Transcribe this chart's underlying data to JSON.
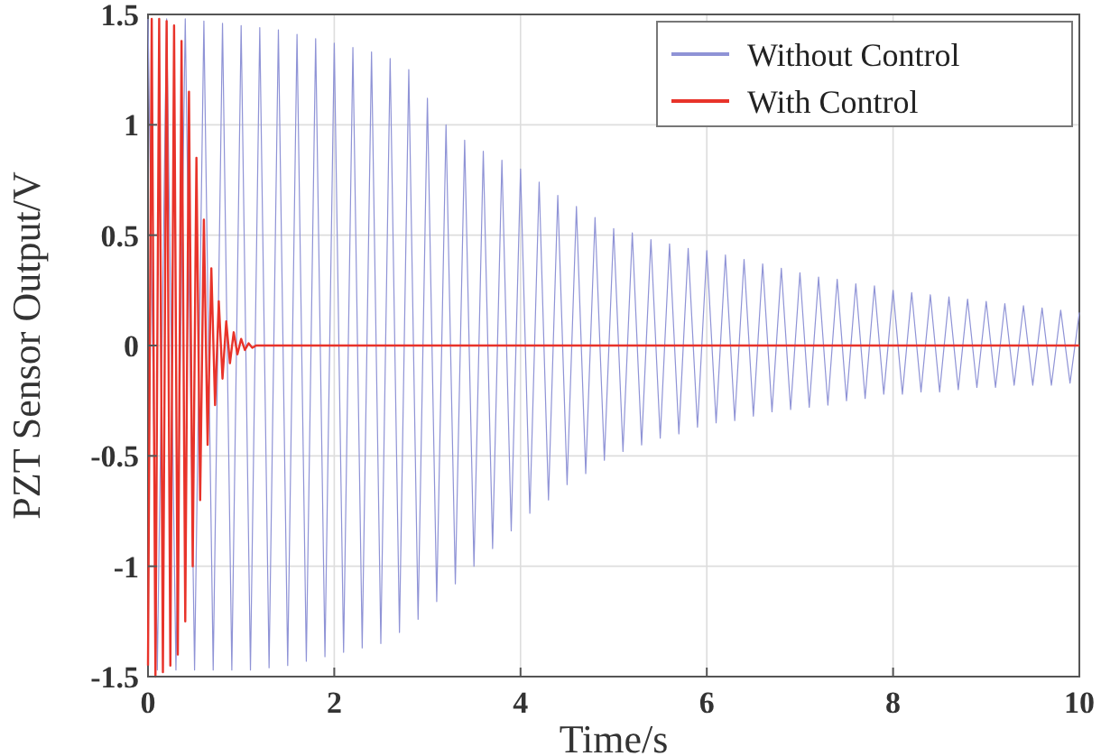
{
  "chart_data": {
    "type": "line",
    "xlabel": "Time/s",
    "ylabel": "PZT Sensor Output/V",
    "x": [
      0,
      0.1,
      0.2,
      0.3,
      0.4,
      0.5,
      0.6,
      0.7,
      0.8,
      0.9,
      1,
      1.1,
      1.2,
      1.3,
      1.4,
      1.5,
      1.6,
      1.7,
      1.8,
      1.9,
      2,
      2.1,
      2.2,
      2.3,
      2.4,
      2.5,
      2.6,
      2.7,
      2.8,
      2.9,
      3,
      3.1,
      3.2,
      3.3,
      3.4,
      3.5,
      3.6,
      3.7,
      3.8,
      3.9,
      4,
      4.1,
      4.2,
      4.3,
      4.4,
      4.5,
      4.6,
      4.7,
      4.8,
      4.9,
      5,
      5.1,
      5.2,
      5.3,
      5.4,
      5.5,
      5.6,
      5.7,
      5.8,
      5.9,
      6,
      6.1,
      6.2,
      6.3,
      6.4,
      6.5,
      6.6,
      6.7,
      6.8,
      6.9,
      7,
      7.1,
      7.2,
      7.3,
      7.4,
      7.5,
      7.6,
      7.7,
      7.8,
      7.9,
      8,
      8.1,
      8.2,
      8.3,
      8.4,
      8.5,
      8.6,
      8.7,
      8.8,
      8.9,
      9,
      9.1,
      9.2,
      9.3,
      9.4,
      9.5,
      9.6,
      9.7,
      9.8,
      9.9,
      10
    ],
    "series": [
      {
        "name": "Without Control",
        "color": "#8f93d6",
        "values": [
          1.48,
          -1.47,
          1.48,
          -1.47,
          1.48,
          -1.47,
          1.47,
          -1.47,
          1.46,
          -1.47,
          1.45,
          -1.47,
          1.44,
          -1.46,
          1.43,
          -1.45,
          1.41,
          -1.43,
          1.39,
          -1.41,
          1.37,
          -1.39,
          1.35,
          -1.37,
          1.33,
          -1.35,
          1.3,
          -1.3,
          1.25,
          -1.24,
          1.12,
          -1.16,
          1.0,
          -1.08,
          0.93,
          -1.0,
          0.88,
          -0.92,
          0.84,
          -0.84,
          0.8,
          -0.76,
          0.74,
          -0.7,
          0.68,
          -0.63,
          0.63,
          -0.58,
          0.58,
          -0.52,
          0.53,
          -0.48,
          0.51,
          -0.45,
          0.48,
          -0.42,
          0.46,
          -0.4,
          0.44,
          -0.37,
          0.43,
          -0.35,
          0.41,
          -0.34,
          0.39,
          -0.32,
          0.37,
          -0.3,
          0.35,
          -0.29,
          0.33,
          -0.28,
          0.31,
          -0.27,
          0.3,
          -0.25,
          0.28,
          -0.24,
          0.27,
          -0.22,
          0.25,
          -0.22,
          0.24,
          -0.21,
          0.23,
          -0.21,
          0.22,
          -0.2,
          0.21,
          -0.19,
          0.2,
          -0.19,
          0.19,
          -0.18,
          0.18,
          -0.18,
          0.17,
          -0.18,
          0.16,
          -0.17,
          0.15
        ]
      },
      {
        "name": "With Control",
        "color": "#e8332a",
        "x": [
          0,
          0.04,
          0.08,
          0.12,
          0.16,
          0.2,
          0.24,
          0.28,
          0.32,
          0.36,
          0.4,
          0.44,
          0.48,
          0.52,
          0.56,
          0.6,
          0.64,
          0.68,
          0.72,
          0.76,
          0.8,
          0.84,
          0.88,
          0.92,
          0.96,
          1,
          1.04,
          1.08,
          1.12,
          1.16,
          10
        ],
        "values": [
          -1.45,
          1.48,
          -1.5,
          1.48,
          -1.48,
          1.47,
          -1.45,
          1.45,
          -1.4,
          1.38,
          -1.25,
          1.15,
          -1.0,
          0.85,
          -0.7,
          0.57,
          -0.45,
          0.35,
          -0.27,
          0.2,
          -0.15,
          0.11,
          -0.08,
          0.06,
          -0.04,
          0.03,
          -0.02,
          0.01,
          -0.01,
          0,
          0
        ]
      }
    ],
    "xlim": [
      0,
      10
    ],
    "xticks": [
      0,
      2,
      4,
      6,
      8,
      10
    ],
    "ylim": [
      -1.5,
      1.5
    ],
    "yticks": [
      -1.5,
      -1,
      -0.5,
      0,
      0.5,
      1,
      1.5
    ],
    "grid": true,
    "legend": "top right",
    "marker": "none",
    "line_style": "solid"
  }
}
